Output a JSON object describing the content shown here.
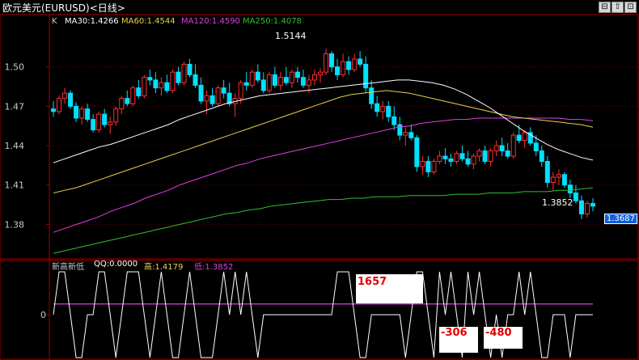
{
  "window": {
    "title": "欧元美元(EURUSD)<日线>",
    "nav_left": "⊟",
    "nav_up": "⇧",
    "nav_right": "⊡"
  },
  "legend": {
    "k": "K",
    "ma30": "MA30:1.4266",
    "ma60": "MA60:1.4544",
    "ma120": "MA120:1.4590",
    "ma250": "MA250:1.4078",
    "colors": {
      "k": "#c8c8c8",
      "ma30": "#ffffff",
      "ma60": "#e8d050",
      "ma120": "#e040e0",
      "ma250": "#30c030"
    }
  },
  "indicator_legend": {
    "name": "新高新低",
    "qq": "QQ:0.0000",
    "high": "高:1.4179",
    "low": "低:1.3852"
  },
  "annotations": {
    "high_label": "1.5144",
    "low_label": "1.3852",
    "last_price": "1.3687",
    "box_1657": "1657",
    "box_306": "-306",
    "box_480": "-480"
  },
  "chart_data": {
    "type": "candlestick",
    "ylim": [
      1.355,
      1.53
    ],
    "yticks": [
      "1.50",
      "1.47",
      "1.44",
      "1.41",
      "1.38"
    ],
    "ytick_values": [
      1.5,
      1.47,
      1.44,
      1.41,
      1.38
    ],
    "up_color": "#ff3030",
    "down_color": "#00e0ff",
    "candles": [
      [
        1.468,
        1.474,
        1.462,
        1.466
      ],
      [
        1.466,
        1.478,
        1.464,
        1.476
      ],
      [
        1.476,
        1.484,
        1.472,
        1.48
      ],
      [
        1.48,
        1.482,
        1.468,
        1.47
      ],
      [
        1.47,
        1.473,
        1.458,
        1.461
      ],
      [
        1.461,
        1.47,
        1.456,
        1.468
      ],
      [
        1.468,
        1.472,
        1.458,
        1.46
      ],
      [
        1.46,
        1.464,
        1.45,
        1.452
      ],
      [
        1.452,
        1.466,
        1.45,
        1.464
      ],
      [
        1.464,
        1.468,
        1.454,
        1.456
      ],
      [
        1.456,
        1.462,
        1.449,
        1.458
      ],
      [
        1.458,
        1.47,
        1.455,
        1.468
      ],
      [
        1.468,
        1.478,
        1.464,
        1.476
      ],
      [
        1.476,
        1.482,
        1.47,
        1.472
      ],
      [
        1.472,
        1.486,
        1.47,
        1.484
      ],
      [
        1.484,
        1.49,
        1.476,
        1.478
      ],
      [
        1.478,
        1.494,
        1.476,
        1.492
      ],
      [
        1.492,
        1.498,
        1.486,
        1.49
      ],
      [
        1.49,
        1.496,
        1.48,
        1.484
      ],
      [
        1.484,
        1.492,
        1.478,
        1.488
      ],
      [
        1.488,
        1.494,
        1.48,
        1.482
      ],
      [
        1.482,
        1.498,
        1.48,
        1.496
      ],
      [
        1.496,
        1.5,
        1.486,
        1.488
      ],
      [
        1.488,
        1.504,
        1.486,
        1.502
      ],
      [
        1.502,
        1.506,
        1.492,
        1.494
      ],
      [
        1.494,
        1.502,
        1.484,
        1.486
      ],
      [
        1.486,
        1.492,
        1.472,
        1.474
      ],
      [
        1.474,
        1.482,
        1.464,
        1.478
      ],
      [
        1.478,
        1.484,
        1.47,
        1.472
      ],
      [
        1.472,
        1.486,
        1.47,
        1.484
      ],
      [
        1.484,
        1.49,
        1.476,
        1.48
      ],
      [
        1.48,
        1.488,
        1.47,
        1.472
      ],
      [
        1.472,
        1.48,
        1.462,
        1.476
      ],
      [
        1.476,
        1.49,
        1.472,
        1.488
      ],
      [
        1.488,
        1.496,
        1.482,
        1.486
      ],
      [
        1.486,
        1.498,
        1.484,
        1.496
      ],
      [
        1.496,
        1.502,
        1.488,
        1.49
      ],
      [
        1.49,
        1.496,
        1.48,
        1.482
      ],
      [
        1.482,
        1.496,
        1.48,
        1.494
      ],
      [
        1.494,
        1.5,
        1.484,
        1.486
      ],
      [
        1.486,
        1.496,
        1.482,
        1.492
      ],
      [
        1.492,
        1.5,
        1.486,
        1.488
      ],
      [
        1.488,
        1.498,
        1.484,
        1.496
      ],
      [
        1.496,
        1.5,
        1.488,
        1.492
      ],
      [
        1.492,
        1.498,
        1.484,
        1.486
      ],
      [
        1.486,
        1.494,
        1.48,
        1.49
      ],
      [
        1.49,
        1.498,
        1.486,
        1.494
      ],
      [
        1.494,
        1.499,
        1.488,
        1.496
      ],
      [
        1.496,
        1.514,
        1.494,
        1.51
      ],
      [
        1.51,
        1.512,
        1.496,
        1.5
      ],
      [
        1.5,
        1.506,
        1.49,
        1.494
      ],
      [
        1.494,
        1.51,
        1.492,
        1.504
      ],
      [
        1.504,
        1.508,
        1.494,
        1.498
      ],
      [
        1.498,
        1.51,
        1.496,
        1.506
      ],
      [
        1.506,
        1.512,
        1.5,
        1.502
      ],
      [
        1.502,
        1.508,
        1.48,
        1.484
      ],
      [
        1.484,
        1.49,
        1.468,
        1.472
      ],
      [
        1.472,
        1.478,
        1.462,
        1.466
      ],
      [
        1.466,
        1.474,
        1.46,
        1.47
      ],
      [
        1.47,
        1.474,
        1.458,
        1.462
      ],
      [
        1.462,
        1.47,
        1.452,
        1.456
      ],
      [
        1.456,
        1.462,
        1.444,
        1.448
      ],
      [
        1.448,
        1.454,
        1.44,
        1.45
      ],
      [
        1.45,
        1.456,
        1.444,
        1.446
      ],
      [
        1.446,
        1.448,
        1.42,
        1.424
      ],
      [
        1.424,
        1.432,
        1.418,
        1.428
      ],
      [
        1.428,
        1.432,
        1.416,
        1.42
      ],
      [
        1.42,
        1.43,
        1.418,
        1.428
      ],
      [
        1.428,
        1.436,
        1.426,
        1.432
      ],
      [
        1.432,
        1.438,
        1.426,
        1.43
      ],
      [
        1.43,
        1.434,
        1.424,
        1.428
      ],
      [
        1.428,
        1.436,
        1.426,
        1.434
      ],
      [
        1.434,
        1.44,
        1.428,
        1.43
      ],
      [
        1.43,
        1.436,
        1.424,
        1.426
      ],
      [
        1.426,
        1.434,
        1.422,
        1.432
      ],
      [
        1.432,
        1.438,
        1.428,
        1.436
      ],
      [
        1.436,
        1.44,
        1.426,
        1.428
      ],
      [
        1.428,
        1.438,
        1.424,
        1.436
      ],
      [
        1.436,
        1.444,
        1.432,
        1.44
      ],
      [
        1.44,
        1.446,
        1.432,
        1.436
      ],
      [
        1.436,
        1.442,
        1.43,
        1.432
      ],
      [
        1.432,
        1.45,
        1.43,
        1.448
      ],
      [
        1.448,
        1.456,
        1.442,
        1.444
      ],
      [
        1.444,
        1.452,
        1.438,
        1.45
      ],
      [
        1.45,
        1.454,
        1.44,
        1.442
      ],
      [
        1.442,
        1.448,
        1.432,
        1.436
      ],
      [
        1.436,
        1.44,
        1.424,
        1.428
      ],
      [
        1.428,
        1.432,
        1.408,
        1.412
      ],
      [
        1.412,
        1.42,
        1.406,
        1.416
      ],
      [
        1.416,
        1.422,
        1.41,
        1.418
      ],
      [
        1.418,
        1.42,
        1.408,
        1.41
      ],
      [
        1.41,
        1.414,
        1.4,
        1.404
      ],
      [
        1.404,
        1.41,
        1.396,
        1.398
      ],
      [
        1.398,
        1.402,
        1.384,
        1.388
      ],
      [
        1.388,
        1.398,
        1.385,
        1.396
      ],
      [
        1.396,
        1.4,
        1.39,
        1.394
      ]
    ],
    "ma30": [
      1.427,
      1.43,
      1.433,
      1.436,
      1.439,
      1.441,
      1.444,
      1.447,
      1.45,
      1.453,
      1.456,
      1.46,
      1.463,
      1.466,
      1.469,
      1.472,
      1.474,
      1.476,
      1.478,
      1.479,
      1.48,
      1.481,
      1.482,
      1.483,
      1.484,
      1.485,
      1.486,
      1.487,
      1.488,
      1.489,
      1.49,
      1.49,
      1.489,
      1.488,
      1.486,
      1.483,
      1.479,
      1.474,
      1.469,
      1.463,
      1.457,
      1.451,
      1.446,
      1.441,
      1.437,
      1.434,
      1.431,
      1.429
    ],
    "ma60": [
      1.404,
      1.406,
      1.408,
      1.411,
      1.414,
      1.417,
      1.42,
      1.423,
      1.426,
      1.429,
      1.432,
      1.435,
      1.438,
      1.441,
      1.444,
      1.447,
      1.45,
      1.453,
      1.456,
      1.459,
      1.462,
      1.465,
      1.468,
      1.471,
      1.474,
      1.477,
      1.479,
      1.48,
      1.481,
      1.482,
      1.481,
      1.48,
      1.478,
      1.476,
      1.474,
      1.472,
      1.47,
      1.468,
      1.466,
      1.464,
      1.462,
      1.461,
      1.46,
      1.459,
      1.458,
      1.457,
      1.456,
      1.454
    ],
    "ma120": [
      1.374,
      1.377,
      1.38,
      1.383,
      1.386,
      1.39,
      1.393,
      1.396,
      1.4,
      1.403,
      1.406,
      1.41,
      1.413,
      1.416,
      1.419,
      1.422,
      1.425,
      1.427,
      1.43,
      1.432,
      1.434,
      1.436,
      1.438,
      1.44,
      1.442,
      1.444,
      1.446,
      1.448,
      1.45,
      1.452,
      1.454,
      1.455,
      1.457,
      1.458,
      1.459,
      1.46,
      1.46,
      1.461,
      1.461,
      1.461,
      1.461,
      1.461,
      1.461,
      1.461,
      1.461,
      1.46,
      1.46,
      1.459
    ],
    "ma250": [
      1.358,
      1.36,
      1.362,
      1.364,
      1.366,
      1.368,
      1.37,
      1.372,
      1.374,
      1.376,
      1.378,
      1.38,
      1.382,
      1.384,
      1.386,
      1.388,
      1.389,
      1.391,
      1.392,
      1.394,
      1.395,
      1.396,
      1.397,
      1.398,
      1.399,
      1.399,
      1.4,
      1.4,
      1.401,
      1.401,
      1.401,
      1.402,
      1.402,
      1.402,
      1.402,
      1.403,
      1.403,
      1.403,
      1.404,
      1.404,
      1.404,
      1.405,
      1.405,
      1.405,
      1.406,
      1.406,
      1.407,
      1.408
    ],
    "indicator": {
      "ylim": [
        -1,
        1
      ],
      "ytick": "0",
      "signal": [
        0,
        1,
        1,
        0,
        -1,
        -1,
        0,
        0,
        1,
        1,
        0,
        -1,
        0,
        1,
        1,
        1,
        0,
        -1,
        0,
        1,
        0,
        -1,
        -1,
        0,
        1,
        0,
        -1,
        -1,
        -1,
        0,
        1,
        0,
        1,
        0,
        1,
        0,
        -1,
        0,
        0,
        0,
        0,
        0,
        0,
        0,
        0,
        0,
        0,
        0,
        0,
        0,
        1,
        1,
        1,
        0,
        -1,
        -1,
        0,
        0,
        0,
        0,
        0,
        0,
        -1,
        0,
        1,
        1,
        0,
        -1,
        1,
        0,
        1,
        0,
        -1,
        1,
        0,
        1,
        0,
        -1,
        0,
        -1,
        0,
        0,
        1,
        0,
        1,
        0,
        -1,
        -1,
        0,
        0,
        0,
        -1,
        0,
        0,
        0,
        0
      ],
      "pink_level": 0.25
    }
  }
}
